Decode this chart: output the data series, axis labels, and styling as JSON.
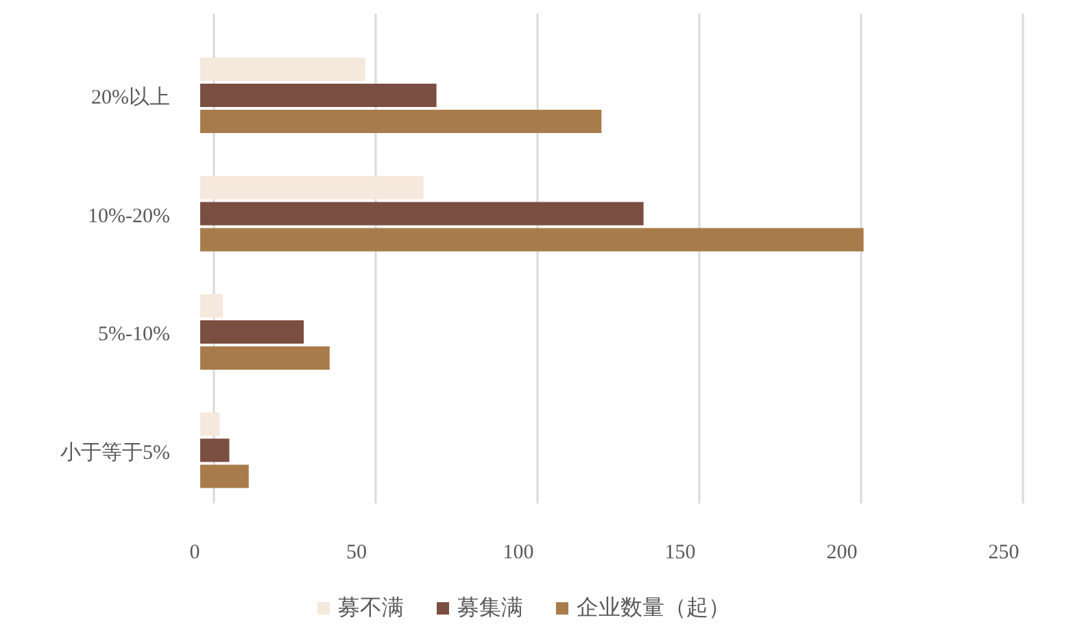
{
  "chart_data": {
    "type": "bar",
    "orientation": "horizontal",
    "categories": [
      "20%以上",
      "10%-20%",
      "5%-10%",
      "小于等于5%"
    ],
    "series": [
      {
        "name": "募不满",
        "color": "#f5e8dc",
        "values": [
          51,
          69,
          7,
          6
        ]
      },
      {
        "name": "募集满",
        "color": "#7a4e40",
        "values": [
          73,
          137,
          32,
          9
        ]
      },
      {
        "name": "企业数量（起）",
        "color": "#a87c4a",
        "values": [
          124,
          205,
          40,
          15
        ]
      }
    ],
    "xlim": [
      0,
      250
    ],
    "xticks": [
      0,
      50,
      100,
      150,
      200,
      250
    ],
    "grid": "x",
    "legend": "bottom"
  }
}
